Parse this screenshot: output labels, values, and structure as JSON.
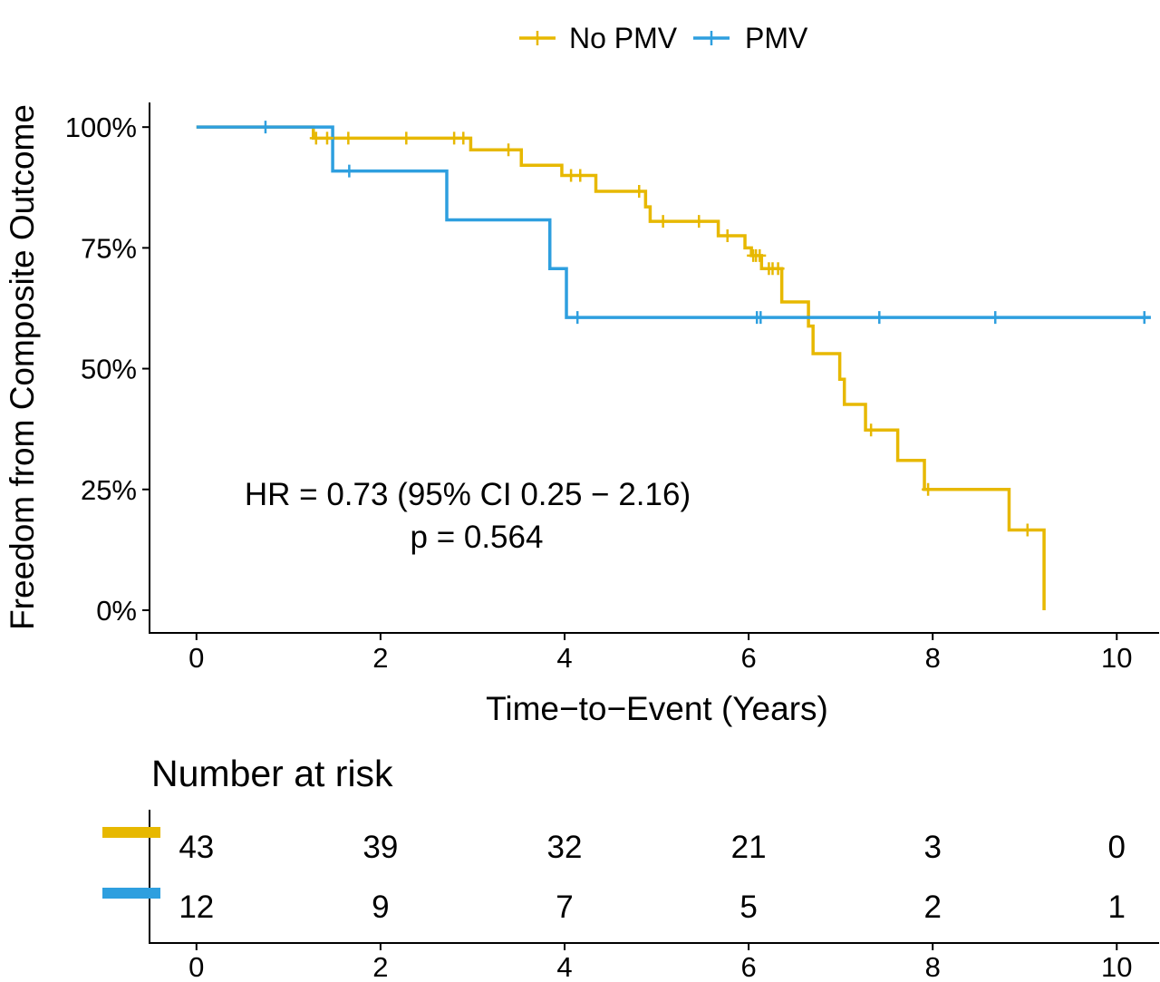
{
  "chart_data": {
    "type": "line",
    "step": true,
    "xlabel": "Time−to−Event (Years)",
    "ylabel": "Freedom from Composite Outcome",
    "xlim": [
      -0.51,
      10.46
    ],
    "ylim": [
      -4.7,
      105.1
    ],
    "x_ticks": [
      0,
      2,
      4,
      6,
      8,
      10
    ],
    "y_ticks": [
      0,
      25,
      50,
      75,
      100
    ],
    "y_tick_labels": [
      "0%",
      "25%",
      "50%",
      "75%",
      "100%"
    ],
    "grid": false,
    "legend_position": "top",
    "series": [
      {
        "name": "No PMV",
        "color": "#E7B800",
        "x": [
          0,
          1.27,
          2.98,
          3.53,
          3.97,
          4.34,
          4.88,
          4.93,
          5.67,
          5.96,
          6.03,
          6.14,
          6.36,
          6.65,
          6.7,
          6.99,
          7.04,
          7.27,
          7.62,
          7.91,
          8.83,
          9.21
        ],
        "y": [
          100,
          97.7,
          95.3,
          92.1,
          90.0,
          86.7,
          83.5,
          80.5,
          77.5,
          75.0,
          73.4,
          70.7,
          63.8,
          58.8,
          53.1,
          47.8,
          42.6,
          37.3,
          31.0,
          25.0,
          16.6,
          0
        ],
        "censored_x": [
          1.3,
          1.42,
          1.65,
          2.28,
          2.8,
          2.9,
          3.39,
          4.07,
          4.17,
          4.81,
          5.07,
          5.46,
          5.77,
          6.05,
          6.08,
          6.12,
          6.22,
          6.26,
          6.32,
          7.33,
          7.95,
          9.03
        ]
      },
      {
        "name": "PMV",
        "color": "#2E9FDF",
        "x": [
          0,
          1.48,
          2.72,
          3.84,
          4.02,
          10.37
        ],
        "y": [
          100,
          90.9,
          80.8,
          70.7,
          60.6,
          60.6
        ],
        "censored_x": [
          0.75,
          1.66,
          4.14,
          6.09,
          6.13,
          7.42,
          8.68,
          10.3
        ]
      }
    ],
    "annotations": [
      "HR = 0.73 (95% CI 0.25 − 2.16)",
      "p = 0.564"
    ],
    "risk_table": {
      "title": "Number at risk",
      "times": [
        0,
        2,
        4,
        6,
        8,
        10
      ],
      "rows": [
        {
          "color": "#E7B800",
          "counts": [
            43,
            39,
            32,
            21,
            3,
            0
          ]
        },
        {
          "color": "#2E9FDF",
          "counts": [
            12,
            9,
            7,
            5,
            2,
            1
          ]
        }
      ]
    }
  }
}
